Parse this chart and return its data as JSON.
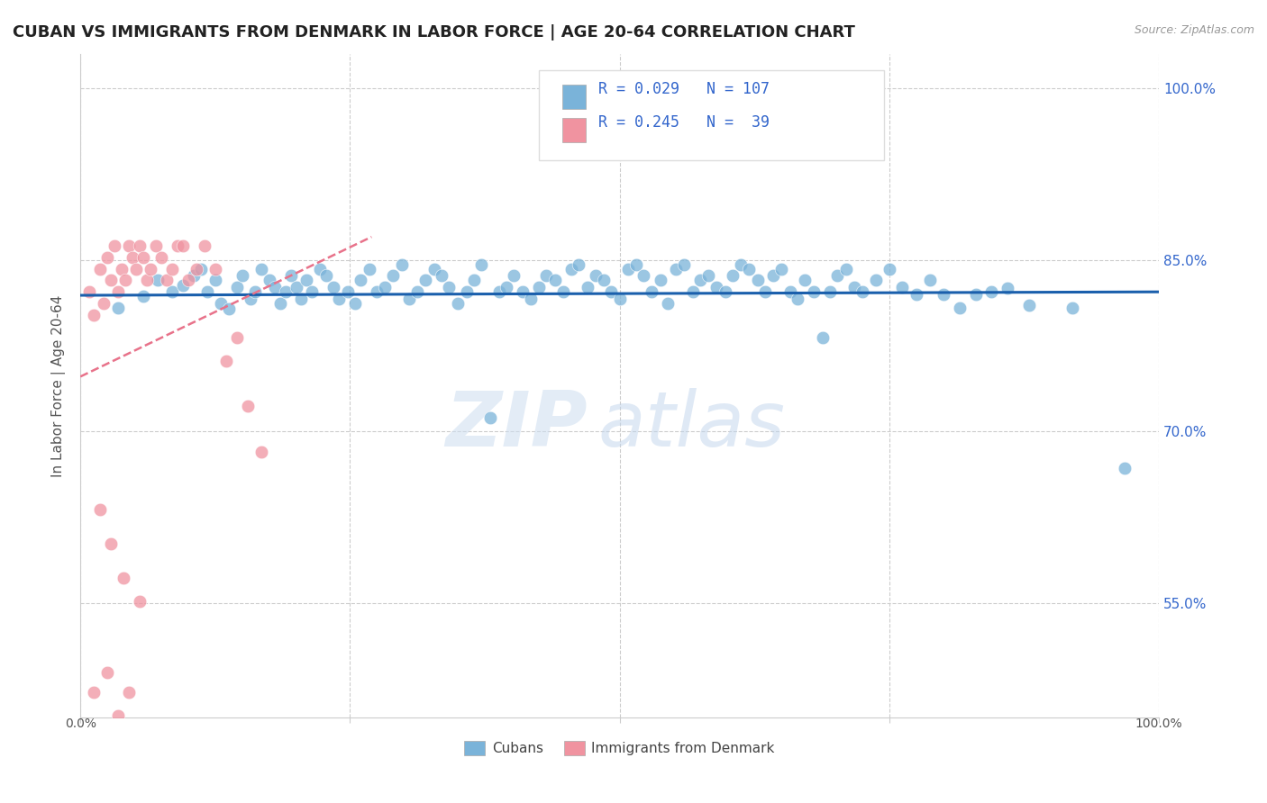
{
  "title": "CUBAN VS IMMIGRANTS FROM DENMARK IN LABOR FORCE | AGE 20-64 CORRELATION CHART",
  "source_text": "Source: ZipAtlas.com",
  "ylabel": "In Labor Force | Age 20-64",
  "xlim": [
    0.0,
    1.0
  ],
  "ylim": [
    0.45,
    1.03
  ],
  "ytick_positions": [
    0.55,
    0.7,
    0.85,
    1.0
  ],
  "ytick_labels": [
    "55.0%",
    "70.0%",
    "85.0%",
    "100.0%"
  ],
  "xtick_positions": [
    0.0,
    0.25,
    0.5,
    0.75,
    1.0
  ],
  "cubans_color": "#7ab3d9",
  "denmark_color": "#f093a0",
  "trendline_blue_color": "#1a5fac",
  "trendline_pink_color": "#e8728a",
  "background_color": "#ffffff",
  "grid_color": "#cccccc",
  "cubans_x": [
    0.035,
    0.058,
    0.072,
    0.085,
    0.095,
    0.105,
    0.112,
    0.118,
    0.125,
    0.13,
    0.138,
    0.145,
    0.15,
    0.158,
    0.162,
    0.168,
    0.175,
    0.18,
    0.185,
    0.19,
    0.195,
    0.2,
    0.205,
    0.21,
    0.215,
    0.222,
    0.228,
    0.235,
    0.24,
    0.248,
    0.255,
    0.26,
    0.268,
    0.275,
    0.282,
    0.29,
    0.298,
    0.305,
    0.312,
    0.32,
    0.328,
    0.335,
    0.342,
    0.35,
    0.358,
    0.365,
    0.372,
    0.38,
    0.388,
    0.395,
    0.402,
    0.41,
    0.418,
    0.425,
    0.432,
    0.44,
    0.448,
    0.455,
    0.462,
    0.47,
    0.478,
    0.485,
    0.492,
    0.5,
    0.508,
    0.515,
    0.522,
    0.53,
    0.538,
    0.545,
    0.552,
    0.56,
    0.568,
    0.575,
    0.582,
    0.59,
    0.598,
    0.605,
    0.612,
    0.62,
    0.628,
    0.635,
    0.642,
    0.65,
    0.658,
    0.665,
    0.672,
    0.68,
    0.688,
    0.695,
    0.702,
    0.71,
    0.718,
    0.725,
    0.738,
    0.75,
    0.762,
    0.775,
    0.788,
    0.8,
    0.815,
    0.83,
    0.845,
    0.86,
    0.88,
    0.92,
    0.968
  ],
  "cubans_y": [
    0.808,
    0.818,
    0.832,
    0.822,
    0.828,
    0.836,
    0.842,
    0.822,
    0.832,
    0.812,
    0.807,
    0.826,
    0.836,
    0.816,
    0.822,
    0.842,
    0.832,
    0.826,
    0.812,
    0.822,
    0.836,
    0.826,
    0.816,
    0.832,
    0.822,
    0.842,
    0.836,
    0.826,
    0.816,
    0.822,
    0.812,
    0.832,
    0.842,
    0.822,
    0.826,
    0.836,
    0.846,
    0.816,
    0.822,
    0.832,
    0.842,
    0.836,
    0.826,
    0.812,
    0.822,
    0.832,
    0.846,
    0.712,
    0.822,
    0.826,
    0.836,
    0.822,
    0.816,
    0.826,
    0.836,
    0.832,
    0.822,
    0.842,
    0.846,
    0.826,
    0.836,
    0.832,
    0.822,
    0.816,
    0.842,
    0.846,
    0.836,
    0.822,
    0.832,
    0.812,
    0.842,
    0.846,
    0.822,
    0.832,
    0.836,
    0.826,
    0.822,
    0.836,
    0.846,
    0.842,
    0.832,
    0.822,
    0.836,
    0.842,
    0.822,
    0.816,
    0.832,
    0.822,
    0.782,
    0.822,
    0.836,
    0.842,
    0.826,
    0.822,
    0.832,
    0.842,
    0.826,
    0.82,
    0.832,
    0.82,
    0.808,
    0.82,
    0.822,
    0.825,
    0.81,
    0.808,
    0.668
  ],
  "denmark_x": [
    0.008,
    0.012,
    0.018,
    0.022,
    0.025,
    0.028,
    0.032,
    0.035,
    0.038,
    0.042,
    0.045,
    0.048,
    0.052,
    0.055,
    0.058,
    0.062,
    0.065,
    0.07,
    0.075,
    0.08,
    0.085,
    0.09,
    0.095,
    0.1,
    0.108,
    0.115,
    0.125,
    0.135,
    0.145,
    0.155,
    0.168,
    0.012,
    0.025,
    0.035,
    0.045,
    0.018,
    0.028,
    0.04,
    0.055
  ],
  "denmark_y": [
    0.822,
    0.802,
    0.842,
    0.812,
    0.852,
    0.832,
    0.862,
    0.822,
    0.842,
    0.832,
    0.862,
    0.852,
    0.842,
    0.862,
    0.852,
    0.832,
    0.842,
    0.862,
    0.852,
    0.832,
    0.842,
    0.862,
    0.862,
    0.832,
    0.842,
    0.862,
    0.842,
    0.762,
    0.782,
    0.722,
    0.682,
    0.472,
    0.49,
    0.452,
    0.472,
    0.632,
    0.602,
    0.572,
    0.552
  ],
  "blue_trend_x": [
    0.0,
    1.0
  ],
  "blue_trend_y": [
    0.819,
    0.822
  ],
  "pink_trend_x": [
    0.0,
    0.27
  ],
  "pink_trend_y": [
    0.748,
    0.87
  ]
}
